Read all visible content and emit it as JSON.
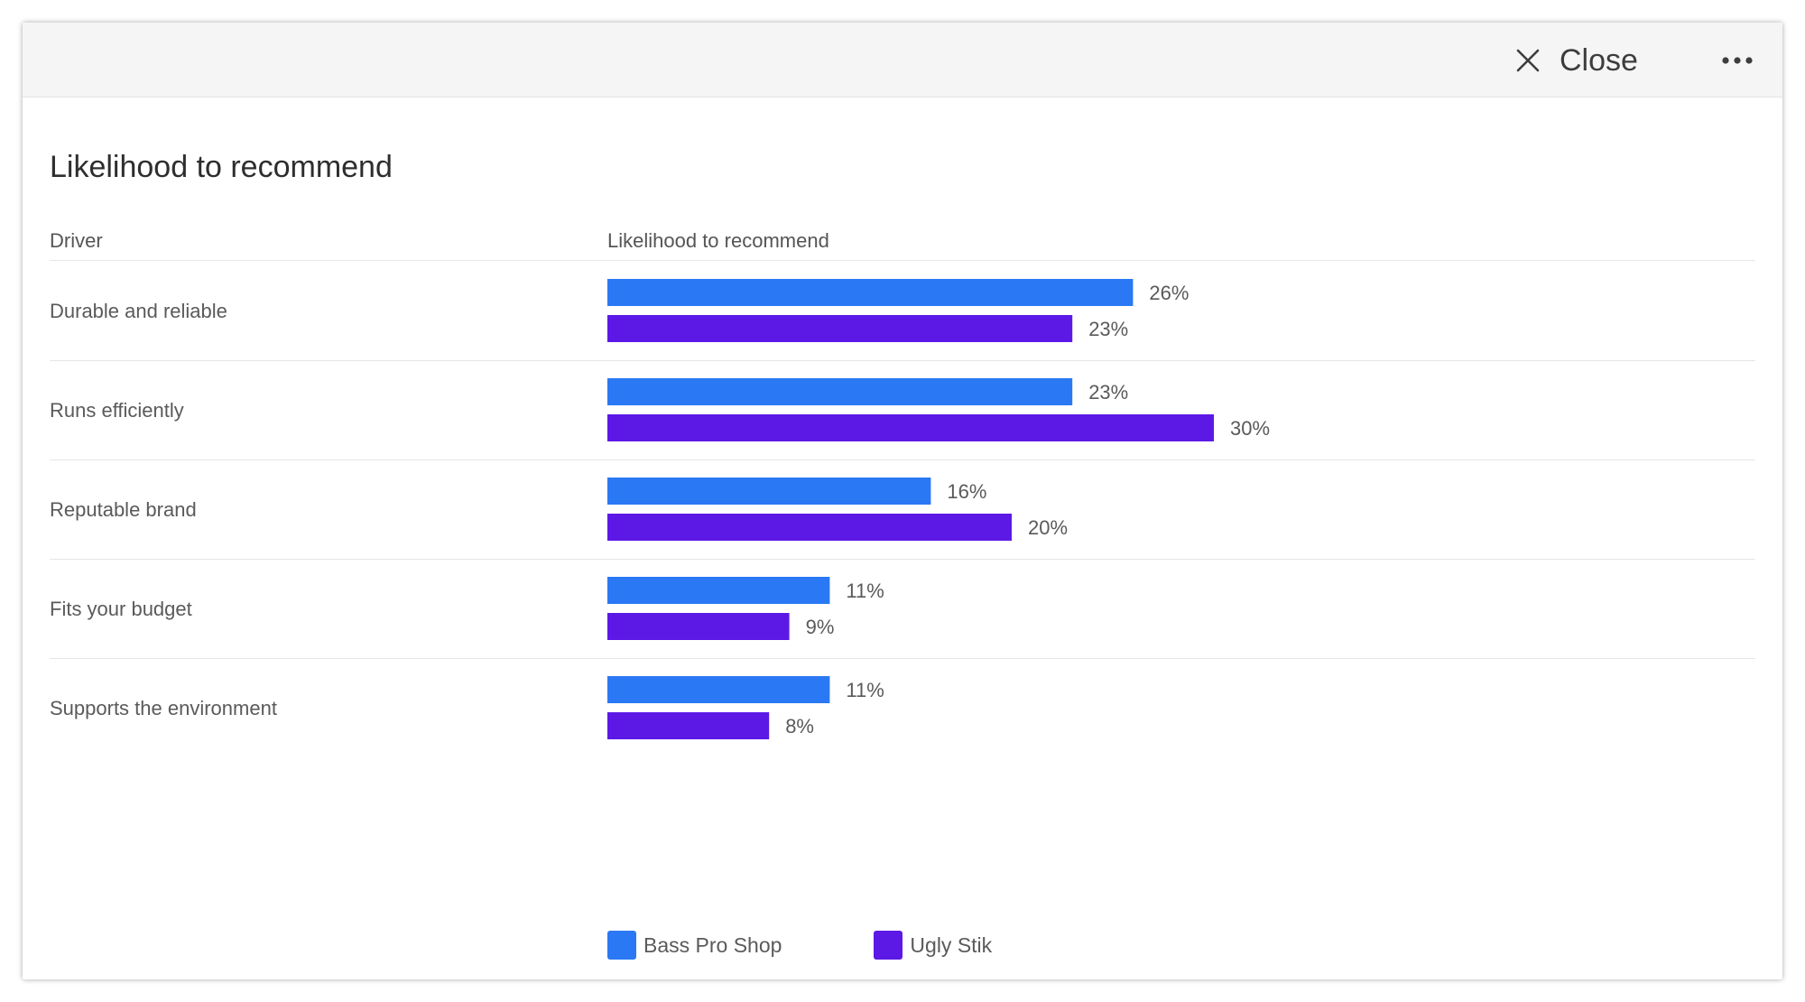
{
  "toolbar": {
    "close_label": "Close",
    "close_icon": "close-icon",
    "more_icon": "more-horizontal-icon"
  },
  "chart_data": {
    "type": "bar",
    "orientation": "horizontal",
    "title": "Likelihood to recommend",
    "category_header": "Driver",
    "value_header": "Likelihood to recommend",
    "categories": [
      "Durable and reliable",
      "Runs efficiently",
      "Reputable brand",
      "Fits your budget",
      "Supports the environment"
    ],
    "series": [
      {
        "name": "Bass Pro Shop",
        "color": "#2a78f4",
        "values": [
          26,
          23,
          16,
          11,
          11
        ]
      },
      {
        "name": "Ugly Stik",
        "color": "#5c19e6",
        "values": [
          23,
          30,
          20,
          9,
          8
        ]
      }
    ],
    "value_suffix": "%",
    "legend_position": "bottom",
    "grid": false
  }
}
